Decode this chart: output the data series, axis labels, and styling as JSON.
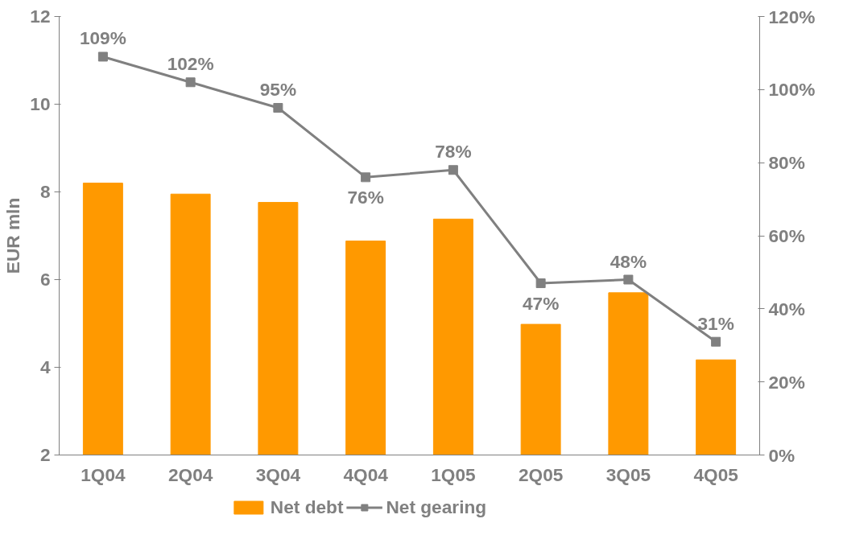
{
  "chart_data": {
    "type": "bar",
    "ylabel": "EUR mln",
    "categories": [
      "1Q04",
      "2Q04",
      "3Q04",
      "4Q04",
      "1Q05",
      "2Q05",
      "3Q05",
      "4Q05"
    ],
    "series": [
      {
        "name": "Net debt",
        "color": "#ff9900",
        "values": [
          8.2,
          7.95,
          7.76,
          6.88,
          7.38,
          4.98,
          5.7,
          4.17
        ]
      },
      {
        "name": "Net gearing",
        "type": "line",
        "axis": "y2",
        "color": "#808080",
        "marker": "square",
        "values": [
          109,
          102,
          95,
          76,
          78,
          47,
          48,
          31
        ],
        "value_labels": [
          "109%",
          "102%",
          "95%",
          "76%",
          "78%",
          "47%",
          "48%",
          "31%"
        ]
      }
    ],
    "ylim": [
      2,
      12
    ],
    "yticks": [
      2,
      4,
      6,
      8,
      10,
      12
    ],
    "y2lim": [
      0,
      120
    ],
    "y2ticks": [
      {
        "value": 0,
        "label": "0%"
      },
      {
        "value": 20,
        "label": "20%"
      },
      {
        "value": 40,
        "label": "40%"
      },
      {
        "value": 60,
        "label": "60%"
      },
      {
        "value": 80,
        "label": "80%"
      },
      {
        "value": 100,
        "label": "100%"
      },
      {
        "value": 120,
        "label": "120%"
      }
    ],
    "grid": false,
    "legend": "bottom"
  }
}
